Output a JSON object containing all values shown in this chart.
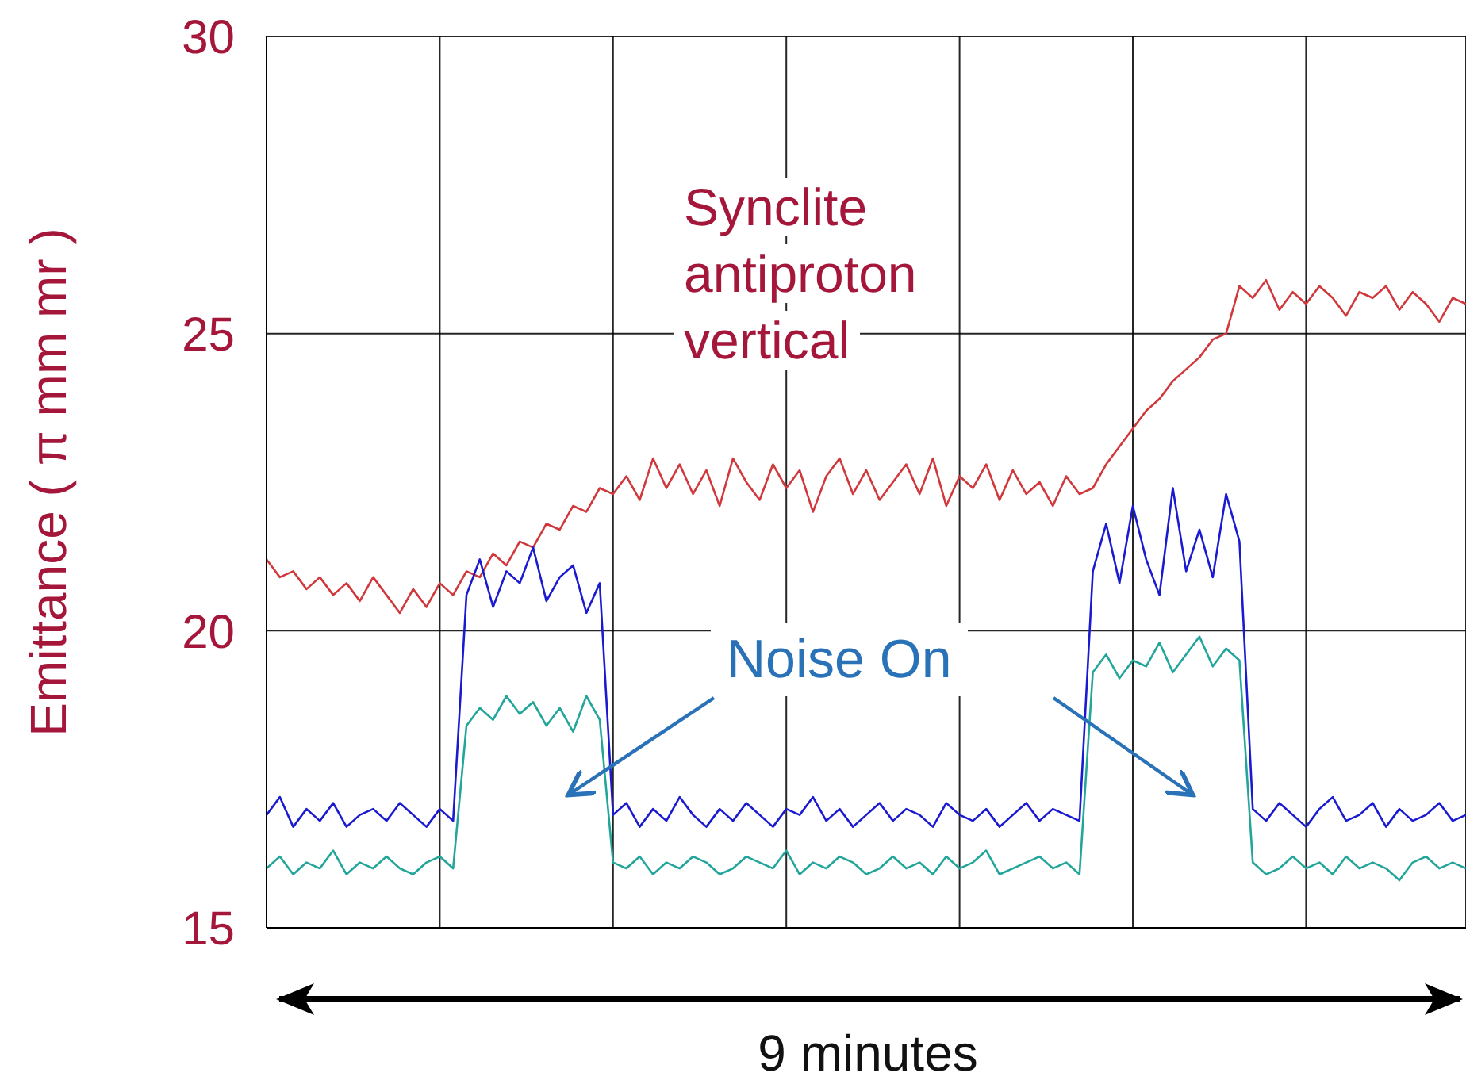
{
  "chart_data": {
    "type": "line",
    "ylabel": "Emittance  ( π mm mr )",
    "categories": [
      null,
      null,
      null,
      null,
      null,
      null,
      null,
      null,
      null,
      null,
      null,
      null,
      null,
      null,
      null,
      null,
      null,
      null,
      null,
      null,
      null,
      null,
      null,
      null,
      null,
      null,
      null,
      null,
      null,
      null,
      null,
      null,
      null,
      null,
      null,
      null,
      null,
      null,
      null,
      null,
      null,
      null,
      null,
      null,
      null,
      null,
      null,
      null,
      null,
      null,
      null,
      null,
      null,
      null,
      null,
      null,
      null,
      null,
      null,
      null,
      null,
      null,
      null,
      null,
      null,
      null,
      null,
      null,
      null,
      null,
      null,
      null,
      null,
      null,
      null,
      null,
      null,
      null,
      null,
      null,
      null,
      null,
      null,
      null,
      null,
      null,
      null,
      null,
      null,
      null,
      null
    ],
    "series": [
      {
        "name": "Synclite antiproton vertical",
        "color": "#d0383c",
        "values": [
          21.2,
          20.9,
          21.0,
          20.7,
          20.9,
          20.6,
          20.8,
          20.5,
          20.9,
          20.6,
          20.3,
          20.7,
          20.4,
          20.8,
          20.6,
          21.0,
          20.9,
          21.3,
          21.1,
          21.5,
          21.4,
          21.8,
          21.7,
          22.1,
          22.0,
          22.4,
          22.3,
          22.6,
          22.2,
          22.9,
          22.4,
          22.8,
          22.3,
          22.7,
          22.1,
          22.9,
          22.5,
          22.2,
          22.8,
          22.4,
          22.7,
          22.0,
          22.6,
          22.9,
          22.3,
          22.7,
          22.2,
          22.5,
          22.8,
          22.3,
          22.9,
          22.1,
          22.6,
          22.4,
          22.8,
          22.2,
          22.7,
          22.3,
          22.5,
          22.1,
          22.6,
          22.3,
          22.4,
          22.8,
          23.1,
          23.4,
          23.7,
          23.9,
          24.2,
          24.4,
          24.6,
          24.9,
          25.0,
          25.8,
          25.6,
          25.9,
          25.4,
          25.7,
          25.5,
          25.8,
          25.6,
          25.3,
          25.7,
          25.6,
          25.8,
          25.4,
          25.7,
          25.5,
          25.2,
          25.6,
          25.5
        ]
      },
      {
        "color": "#1a1ad0",
        "values": [
          16.9,
          17.2,
          16.7,
          17.0,
          16.8,
          17.1,
          16.7,
          16.9,
          17.0,
          16.8,
          17.1,
          16.9,
          16.7,
          17.0,
          16.8,
          20.6,
          21.2,
          20.4,
          21.0,
          20.8,
          21.4,
          20.5,
          20.9,
          21.1,
          20.3,
          20.8,
          16.9,
          17.1,
          16.7,
          17.0,
          16.8,
          17.2,
          16.9,
          16.7,
          17.0,
          16.8,
          17.1,
          16.9,
          16.7,
          17.0,
          16.9,
          17.2,
          16.8,
          17.0,
          16.7,
          16.9,
          17.1,
          16.8,
          17.0,
          16.9,
          16.7,
          17.1,
          16.9,
          16.8,
          17.0,
          16.7,
          16.9,
          17.1,
          16.8,
          17.0,
          16.9,
          16.8,
          21.0,
          21.8,
          20.8,
          22.1,
          21.2,
          20.6,
          22.4,
          21.0,
          21.7,
          20.9,
          22.3,
          21.5,
          17.0,
          16.8,
          17.1,
          16.9,
          16.7,
          17.0,
          17.2,
          16.8,
          16.9,
          17.1,
          16.7,
          17.0,
          16.8,
          16.9,
          17.1,
          16.8,
          16.9
        ]
      },
      {
        "color": "#22a59a",
        "values": [
          16.0,
          16.2,
          15.9,
          16.1,
          16.0,
          16.3,
          15.9,
          16.1,
          16.0,
          16.2,
          16.0,
          15.9,
          16.1,
          16.2,
          16.0,
          18.4,
          18.7,
          18.5,
          18.9,
          18.6,
          18.8,
          18.4,
          18.7,
          18.3,
          18.9,
          18.5,
          16.1,
          16.0,
          16.2,
          15.9,
          16.1,
          16.0,
          16.2,
          16.1,
          15.9,
          16.0,
          16.2,
          16.1,
          16.0,
          16.3,
          15.9,
          16.1,
          16.0,
          16.2,
          16.1,
          15.9,
          16.0,
          16.2,
          16.0,
          16.1,
          15.9,
          16.2,
          16.0,
          16.1,
          16.3,
          15.9,
          16.0,
          16.1,
          16.2,
          16.0,
          16.1,
          15.9,
          19.3,
          19.6,
          19.2,
          19.5,
          19.4,
          19.8,
          19.3,
          19.6,
          19.9,
          19.4,
          19.7,
          19.5,
          16.1,
          15.9,
          16.0,
          16.2,
          16.0,
          16.1,
          15.9,
          16.2,
          16.0,
          16.1,
          16.0,
          15.8,
          16.1,
          16.2,
          16.0,
          16.1,
          16.0
        ]
      }
    ],
    "ylim": [
      15,
      30
    ],
    "yticks": [
      15,
      20,
      25,
      30
    ],
    "grid": true,
    "tick_labels": "y",
    "marker": "none",
    "line_style": "solid",
    "annotations": [
      "Noise On",
      "9 minutes"
    ]
  }
}
